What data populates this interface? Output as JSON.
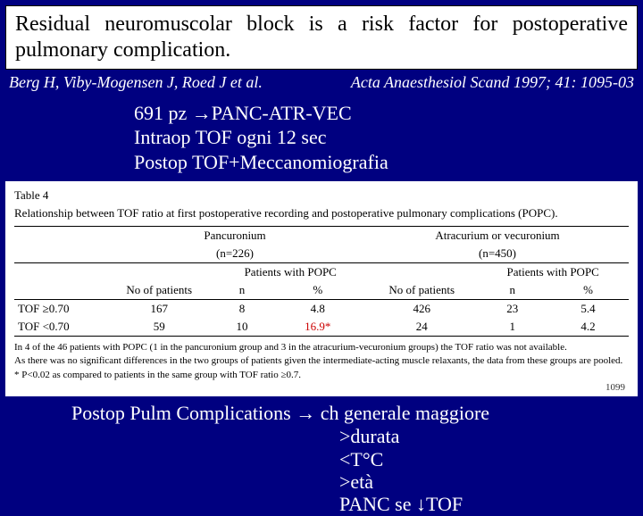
{
  "title": "Residual neuromuscolar block is a risk factor for postoperative pulmonary complication.",
  "citation": {
    "authors": "Berg H, Viby-Mogensen J, Roed J et al.",
    "journal": "Acta Anaesthesiol Scand 1997; 41: 1095-03"
  },
  "bullets": {
    "b1": "691 pz →PANC-ATR-VEC",
    "b2": "Intraop TOF ogni 12 sec",
    "b3": "Postop TOF+Meccanomiografia"
  },
  "table": {
    "label": "Table 4",
    "caption": "Relationship between TOF ratio at first postoperative recording and postoperative pulmonary complications (POPC).",
    "groups": {
      "g1_label": "Pancuronium",
      "g1_n": "(n=226)",
      "g2_label": "Atracurium or vecuronium",
      "g2_n": "(n=450)"
    },
    "subheaders": {
      "sh_left": "Patients with POPC",
      "sh_right": "Patients with POPC",
      "c1": "No of patients",
      "c2": "n",
      "c3": "%",
      "c4": "No of patients",
      "c5": "n",
      "c6": "%"
    },
    "rows": [
      {
        "label": "TOF ≥0.70",
        "a": "167",
        "b": "8",
        "c": "4.8",
        "d": "426",
        "e": "23",
        "f": "5.4"
      },
      {
        "label": "TOF <0.70",
        "a": "59",
        "b": "10",
        "c": "16.9*",
        "d": "24",
        "e": "1",
        "f": "4.2"
      }
    ],
    "footnotes": {
      "f1": "In 4 of the 46 patients with POPC (1 in the pancuronium group and 3 in the atracurium-vecuronium groups) the TOF ratio was not available.",
      "f2": "As there was no significant differences in the two groups of patients given the intermediate-acting muscle relaxants, the data from these groups are pooled.",
      "f3": "* P<0.02 as compared to patients in the same group with TOF ratio ≥0.7."
    },
    "page": "1099"
  },
  "summary": {
    "main": "Postop Pulm Complications → ch generale maggiore",
    "s1": ">durata",
    "s2": "<T°C",
    "s3": ">età",
    "s4": "PANC se ↓TOF"
  },
  "colors": {
    "background": "#000080",
    "panel": "#ffffff",
    "highlight": "#cc0000"
  }
}
